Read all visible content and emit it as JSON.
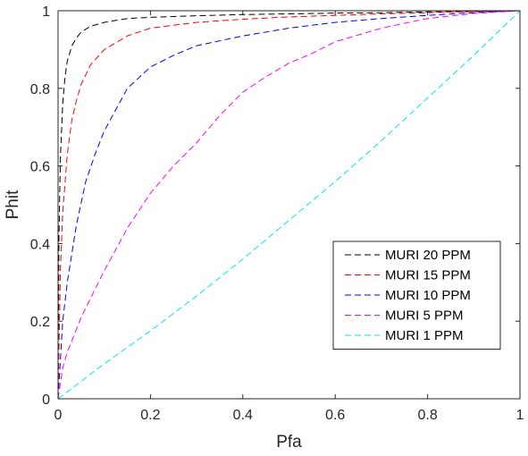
{
  "chart_data": {
    "type": "line",
    "xlabel": "Pfa",
    "ylabel": "Phit",
    "xlim": [
      0,
      1
    ],
    "ylim": [
      0,
      1
    ],
    "xticks": [
      "0",
      "0.2",
      "0.4",
      "0.6",
      "0.8",
      "1"
    ],
    "yticks": [
      "0",
      "0.2",
      "0.4",
      "0.6",
      "0.8",
      "1"
    ],
    "grid": false,
    "legend_position": "bottom-right",
    "line_style": "dashed",
    "series": [
      {
        "name": "MURI 20 PPM",
        "color": "#000000",
        "x": [
          0,
          0.002,
          0.005,
          0.01,
          0.015,
          0.02,
          0.03,
          0.04,
          0.05,
          0.07,
          0.1,
          0.15,
          0.2,
          0.3,
          0.4,
          0.5,
          0.6,
          0.7,
          0.8,
          0.9,
          1.0
        ],
        "y": [
          0,
          0.42,
          0.62,
          0.76,
          0.83,
          0.87,
          0.91,
          0.93,
          0.945,
          0.96,
          0.97,
          0.98,
          0.983,
          0.987,
          0.99,
          0.992,
          0.994,
          0.995,
          0.997,
          0.998,
          1.0
        ]
      },
      {
        "name": "MURI 15 PPM",
        "color": "#ff0000",
        "x": [
          0,
          0.005,
          0.01,
          0.02,
          0.03,
          0.04,
          0.05,
          0.07,
          0.1,
          0.15,
          0.2,
          0.3,
          0.4,
          0.5,
          0.6,
          0.7,
          0.8,
          0.9,
          1.0
        ],
        "y": [
          0,
          0.33,
          0.48,
          0.63,
          0.72,
          0.77,
          0.81,
          0.86,
          0.9,
          0.935,
          0.955,
          0.97,
          0.978,
          0.984,
          0.988,
          0.992,
          0.995,
          0.998,
          1.0
        ]
      },
      {
        "name": "MURI 10 PPM",
        "color": "#0000ff",
        "x": [
          0,
          0.01,
          0.02,
          0.04,
          0.06,
          0.08,
          0.1,
          0.15,
          0.2,
          0.25,
          0.3,
          0.4,
          0.5,
          0.6,
          0.7,
          0.8,
          0.9,
          1.0
        ],
        "y": [
          0,
          0.2,
          0.3,
          0.45,
          0.56,
          0.63,
          0.69,
          0.8,
          0.855,
          0.885,
          0.91,
          0.935,
          0.955,
          0.97,
          0.98,
          0.988,
          0.995,
          1.0
        ]
      },
      {
        "name": "MURI 5 PPM",
        "color": "#ff00ff",
        "x": [
          0,
          0.01,
          0.02,
          0.05,
          0.1,
          0.15,
          0.2,
          0.25,
          0.3,
          0.35,
          0.4,
          0.45,
          0.5,
          0.55,
          0.6,
          0.7,
          0.8,
          0.9,
          1.0
        ],
        "y": [
          0,
          0.08,
          0.12,
          0.21,
          0.33,
          0.44,
          0.53,
          0.6,
          0.66,
          0.73,
          0.79,
          0.83,
          0.865,
          0.89,
          0.92,
          0.955,
          0.98,
          0.993,
          1.0
        ]
      },
      {
        "name": "MURI 1 PPM",
        "color": "#00e5ee",
        "x": [
          0,
          0.05,
          0.1,
          0.2,
          0.3,
          0.4,
          0.5,
          0.6,
          0.7,
          0.8,
          0.9,
          1.0
        ],
        "y": [
          0,
          0.045,
          0.09,
          0.175,
          0.265,
          0.36,
          0.46,
          0.56,
          0.665,
          0.775,
          0.885,
          1.0
        ]
      }
    ]
  }
}
